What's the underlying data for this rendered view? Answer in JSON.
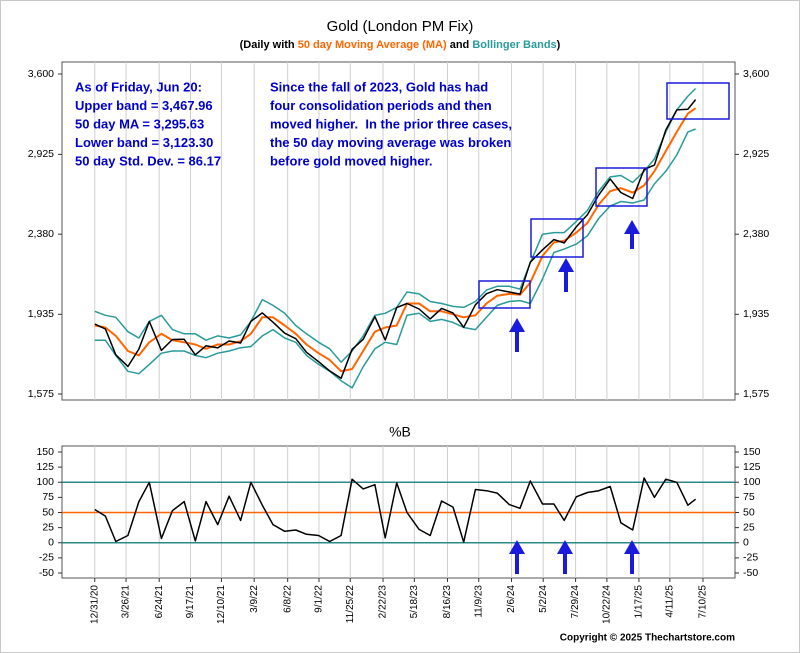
{
  "chart_data": [
    {
      "type": "line",
      "title": "Gold (London PM Fix)",
      "subtitle": [
        {
          "text": "(Daily with ",
          "color": "#000000"
        },
        {
          "text": "50 day Moving Average (MA)",
          "color": "#ff6600"
        },
        {
          "text": " and ",
          "color": "#000000"
        },
        {
          "text": "Bollinger Bands",
          "color": "#2a9a9a"
        },
        {
          "text": ")",
          "color": "#000000"
        }
      ],
      "annotations": [
        {
          "lines": [
            "As of Friday, Jun 20:",
            "Upper band = 3,467.96",
            "50 day MA = 3,295.63",
            "Lower band = 3,123.30",
            "50 day Std. Dev. = 86.17"
          ]
        },
        {
          "lines": [
            "Since the fall of 2023, Gold has had",
            "four consolidation periods and then",
            "moved higher.  In the prior three cases,",
            "the 50 day moving average was broken",
            "before gold moved higher."
          ]
        }
      ],
      "x": [
        "12/31/20",
        "1/29/21",
        "2/26/21",
        "3/31/21",
        "4/30/21",
        "5/28/21",
        "6/30/21",
        "7/30/21",
        "8/31/21",
        "9/30/21",
        "10/29/21",
        "11/30/21",
        "12/31/21",
        "1/31/22",
        "2/28/22",
        "3/31/22",
        "4/29/22",
        "5/31/22",
        "6/30/22",
        "7/29/22",
        "8/31/22",
        "9/30/22",
        "10/31/22",
        "11/30/22",
        "12/30/22",
        "1/31/23",
        "2/28/23",
        "3/31/23",
        "4/28/23",
        "5/31/23",
        "6/30/23",
        "7/31/23",
        "8/31/23",
        "9/29/23",
        "10/31/23",
        "11/30/23",
        "12/29/23",
        "1/31/24",
        "2/29/24",
        "3/28/24",
        "4/30/24",
        "5/31/24",
        "6/28/24",
        "7/31/24",
        "8/30/24",
        "9/30/24",
        "10/31/24",
        "11/29/24",
        "12/31/24",
        "1/31/25",
        "2/28/25",
        "3/31/25",
        "4/30/25",
        "5/30/25",
        "6/20/25"
      ],
      "series": [
        {
          "color": "#2a9a9a",
          "values": [
            1950,
            1930,
            1920,
            1850,
            1820,
            1900,
            1930,
            1860,
            1840,
            1840,
            1810,
            1830,
            1820,
            1835,
            1900,
            2010,
            1980,
            1940,
            1880,
            1840,
            1800,
            1770,
            1710,
            1760,
            1830,
            1930,
            1940,
            1970,
            2050,
            2040,
            2000,
            1990,
            1975,
            1970,
            2000,
            2060,
            2080,
            2080,
            2065,
            2210,
            2380,
            2390,
            2390,
            2460,
            2530,
            2660,
            2760,
            2770,
            2720,
            2800,
            2890,
            3100,
            3280,
            3400,
            3467.96
          ]
        },
        {
          "color": "#2a9a9a",
          "values": [
            1810,
            1810,
            1740,
            1670,
            1660,
            1700,
            1750,
            1760,
            1760,
            1740,
            1730,
            1750,
            1760,
            1775,
            1780,
            1830,
            1860,
            1820,
            1800,
            1740,
            1700,
            1670,
            1630,
            1600,
            1690,
            1770,
            1800,
            1790,
            1930,
            1940,
            1900,
            1910,
            1895,
            1870,
            1860,
            1920,
            1980,
            2000,
            2005,
            1990,
            2120,
            2270,
            2290,
            2320,
            2370,
            2480,
            2560,
            2590,
            2580,
            2600,
            2710,
            2800,
            2920,
            3100,
            3123.3
          ]
        },
        {
          "color": "#ff6600",
          "values": [
            1880,
            1870,
            1830,
            1760,
            1740,
            1800,
            1840,
            1810,
            1800,
            1790,
            1770,
            1790,
            1790,
            1805,
            1840,
            1920,
            1920,
            1880,
            1840,
            1790,
            1750,
            1720,
            1670,
            1680,
            1760,
            1850,
            1870,
            1880,
            1990,
            1990,
            1950,
            1950,
            1935,
            1920,
            1930,
            1990,
            2030,
            2040,
            2035,
            2100,
            2250,
            2330,
            2340,
            2390,
            2450,
            2570,
            2660,
            2680,
            2650,
            2700,
            2800,
            2950,
            3100,
            3250,
            3295.63
          ]
        },
        {
          "color": "#000000",
          "values": [
            1887,
            1863,
            1743,
            1691,
            1769,
            1900,
            1763,
            1813,
            1814,
            1743,
            1784,
            1774,
            1806,
            1797,
            1900,
            1942,
            1896,
            1843,
            1817,
            1754,
            1712,
            1672,
            1640,
            1768,
            1814,
            1923,
            1811,
            1969,
            1990,
            1962,
            1912,
            1965,
            1942,
            1871,
            1983,
            2041,
            2062,
            2050,
            2039,
            2214,
            2286,
            2347,
            2327,
            2426,
            2503,
            2634,
            2745,
            2650,
            2610,
            2813,
            2845,
            3115,
            3281,
            3287,
            3370
          ]
        }
      ],
      "xlim": [
        "10/3/20",
        "10/5/25"
      ],
      "xticks": [
        "12/31/20",
        "3/26/21",
        "6/24/21",
        "9/17/21",
        "12/10/21",
        "3/9/22",
        "6/8/22",
        "9/1/22",
        "11/25/22",
        "2/22/23",
        "5/18/23",
        "8/16/23",
        "11/9/23",
        "2/6/24",
        "5/2/24",
        "7/29/24",
        "10/22/24",
        "1/17/25",
        "4/11/25",
        "7/10/25"
      ],
      "ylim": [
        1575,
        3600
      ],
      "yticks": [
        {
          "value": 1575,
          "label": "1,575"
        },
        {
          "value": 1935,
          "label": "1,935"
        },
        {
          "value": 2380,
          "label": "2,380"
        },
        {
          "value": 2925,
          "label": "2,925"
        },
        {
          "value": 3600,
          "label": "3,600"
        }
      ],
      "log_y": true,
      "grid": true
    },
    {
      "type": "line",
      "title": "%B",
      "color": "#000000",
      "values": [
        55,
        44,
        2,
        12,
        68,
        100,
        7,
        53,
        68,
        3,
        68,
        30,
        77,
        37,
        100,
        62,
        30,
        19,
        21,
        14,
        12,
        2,
        12,
        105,
        89,
        96,
        8,
        99,
        50,
        22,
        12,
        69,
        59,
        1,
        88,
        86,
        82,
        63,
        57,
        102,
        64,
        64,
        37,
        76,
        83,
        86,
        93,
        33,
        21,
        107,
        75,
        105,
        100,
        62,
        72
      ],
      "ylim": [
        -50,
        150
      ],
      "yticks": [
        -50,
        -25,
        0,
        25,
        50,
        75,
        100,
        125,
        150
      ],
      "hlines": [
        {
          "value": 0,
          "color": "#2a8a8a"
        },
        {
          "value": 50,
          "color": "#ff6600"
        },
        {
          "value": 100,
          "color": "#2a8a8a"
        }
      ],
      "grid": true
    }
  ],
  "footer": "Copyright © 2025 Thechartstore.com"
}
